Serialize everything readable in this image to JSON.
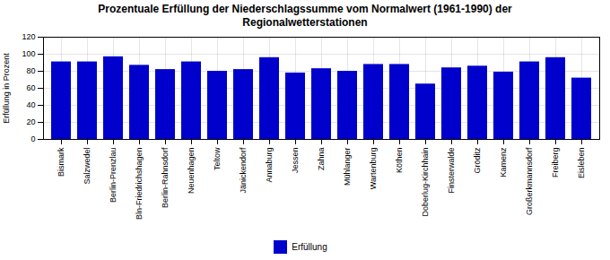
{
  "chart_data": {
    "type": "bar",
    "title": "Prozentuale Erfüllung der Niederschlagssumme vom Normalwert (1961-1990) der\nRegionalwetterstationen",
    "ylabel": "Erfüllung in Prozent",
    "categories": [
      "Bismark",
      "Salzwedel",
      "Berlin-Prenzlau",
      "Bln-Friedrichshagen",
      "Berlin-Rahnsdorf",
      "Neuenhagen",
      "Teltow",
      "Jänickendorf",
      "Annaburg",
      "Jessen",
      "Zahna",
      "Mühlanger",
      "Wartenburg",
      "Köthen",
      "Doberlug-Kirchhain",
      "Finsterwalde",
      "Gröditz",
      "Kamenz",
      "Großerkmannsdorf",
      "Freiberg",
      "Eisleben"
    ],
    "series": [
      {
        "name": "Erfüllung",
        "color": "#0000cc",
        "values": [
          91,
          91,
          97,
          87,
          82,
          91,
          80,
          82,
          96,
          78,
          83,
          80,
          88,
          88,
          65,
          84,
          86,
          79,
          91,
          96,
          72
        ]
      }
    ],
    "ylim": [
      0,
      120
    ],
    "yticks": [
      0,
      20,
      40,
      60,
      80,
      100,
      120
    ],
    "grid": true,
    "legend": "bottom"
  }
}
